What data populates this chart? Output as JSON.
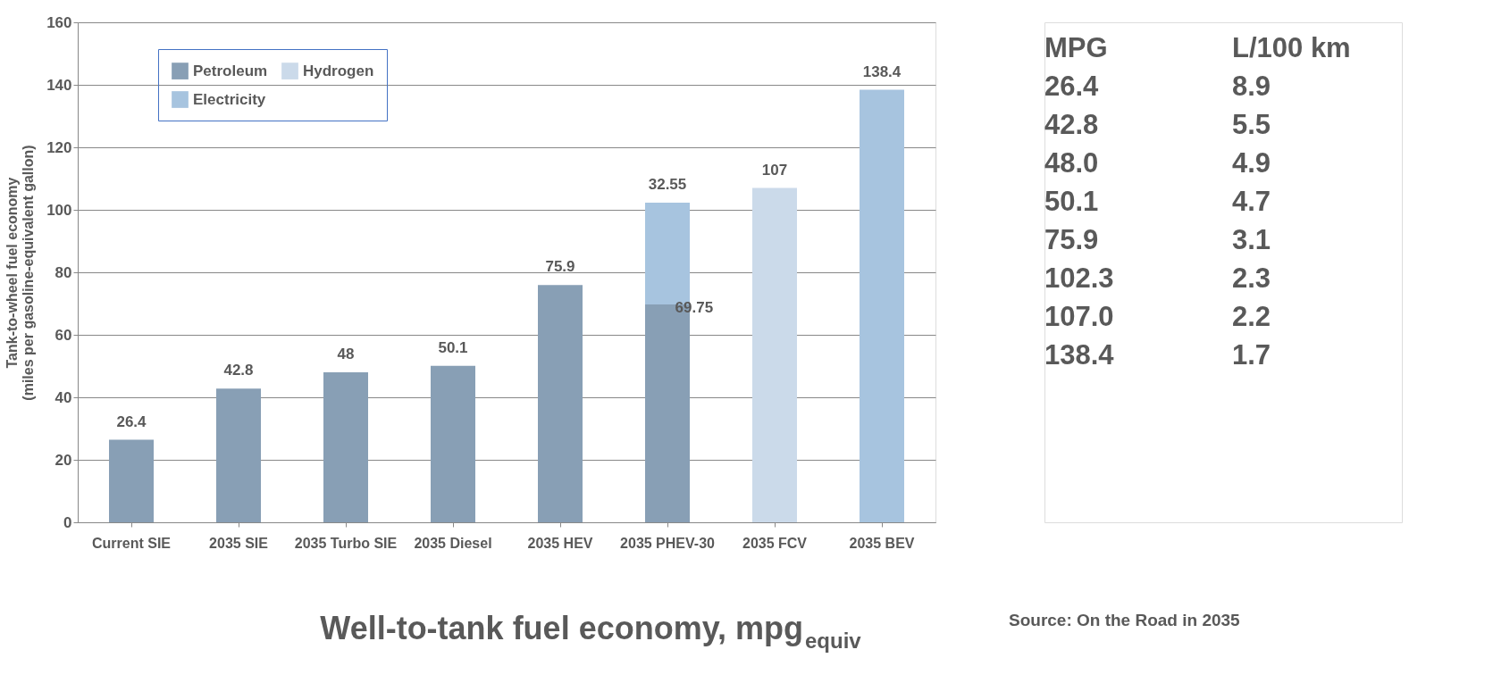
{
  "chart_data": {
    "type": "bar",
    "stacked": true,
    "xlabel": "Well-to-tank fuel economy, mpg$_{equiv}$",
    "ylabel": "Tank-to-wheel fuel economy\n(miles per gasoline-equivalent gallon)",
    "categories": [
      "Current SIE",
      "2035 SIE",
      "2035 Turbo SIE",
      "2035 Diesel",
      "2035 HEV",
      "2035 PHEV-30",
      "2035 FCV",
      "2035 BEV"
    ],
    "series": [
      {
        "name": "Petroleum",
        "color": "#889fb5",
        "values": [
          26.4,
          42.8,
          48,
          50.1,
          75.9,
          69.75,
          null,
          null
        ],
        "value_labels": [
          "26.4",
          "42.8",
          "48",
          "50.1",
          "75.9",
          "69.75",
          null,
          null
        ]
      },
      {
        "name": "Electricity",
        "color": "#a7c4df",
        "values": [
          null,
          null,
          null,
          null,
          null,
          32.55,
          null,
          138.4
        ],
        "value_labels": [
          null,
          null,
          null,
          null,
          null,
          "32.55",
          null,
          "138.4"
        ]
      },
      {
        "name": "Hydrogen",
        "color": "#cbdaea",
        "values": [
          null,
          null,
          null,
          null,
          null,
          null,
          107,
          null
        ],
        "value_labels": [
          null,
          null,
          null,
          null,
          null,
          null,
          "107",
          null
        ]
      }
    ],
    "ylim": [
      0,
      160
    ],
    "yticks": [
      0,
      20,
      40,
      60,
      80,
      100,
      120,
      140,
      160
    ],
    "grid": "y",
    "legend": "top left",
    "annotations": [
      "MPG",
      "L/100 km",
      "26.4",
      "8.9",
      "42.8",
      "5.5",
      "48.0",
      "4.9",
      "50.1",
      "4.7",
      "75.9",
      "3.1",
      "102.3",
      "2.3",
      "107.0",
      "2.2",
      "138.4",
      "1.7",
      "Source: On the Road in 2035"
    ]
  }
}
